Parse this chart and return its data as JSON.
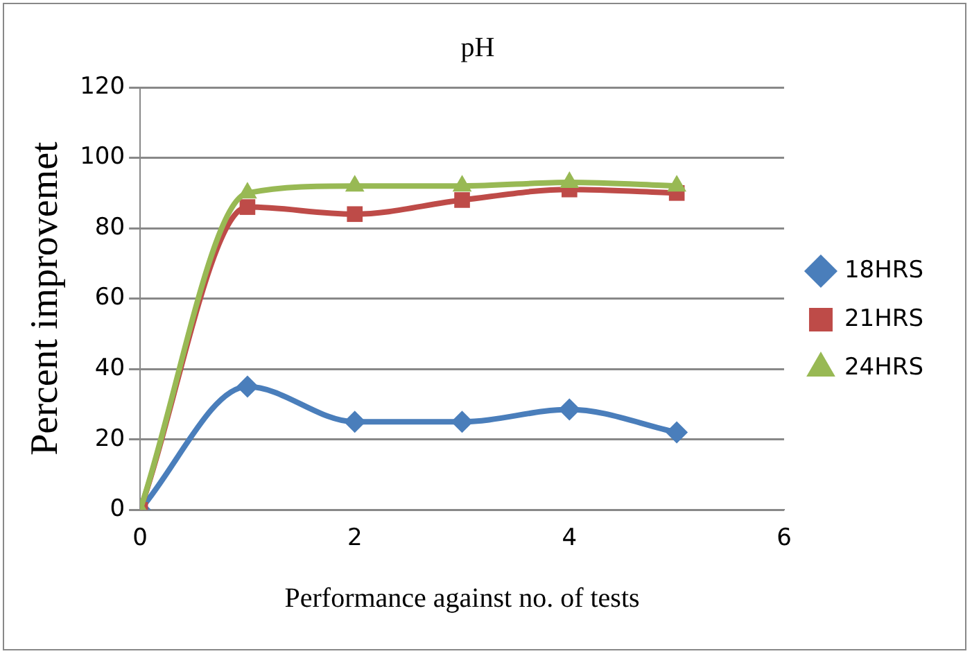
{
  "chart_data": {
    "type": "line",
    "title": "pH",
    "xlabel": "Performance against no. of tests",
    "ylabel": "Percent improvemet",
    "x": [
      0,
      1,
      2,
      3,
      4,
      5
    ],
    "series": [
      {
        "name": "18HRS",
        "color": "#4a7ebb",
        "values": [
          0,
          35,
          25,
          25,
          28.5,
          22
        ],
        "marker": "diamond"
      },
      {
        "name": "21HRS",
        "color": "#be4b48",
        "values": [
          0,
          86,
          84,
          88,
          91,
          90
        ],
        "marker": "square"
      },
      {
        "name": "24HRS",
        "color": "#98b954",
        "values": [
          0,
          90,
          92,
          92,
          93,
          92
        ],
        "marker": "triangle"
      }
    ],
    "xlim": [
      0,
      6
    ],
    "xticks": [
      0,
      2,
      4,
      6
    ],
    "ylim": [
      0,
      120
    ],
    "yticks": [
      0,
      20,
      40,
      60,
      80,
      100,
      120
    ],
    "grid": "y",
    "legend": "right"
  }
}
